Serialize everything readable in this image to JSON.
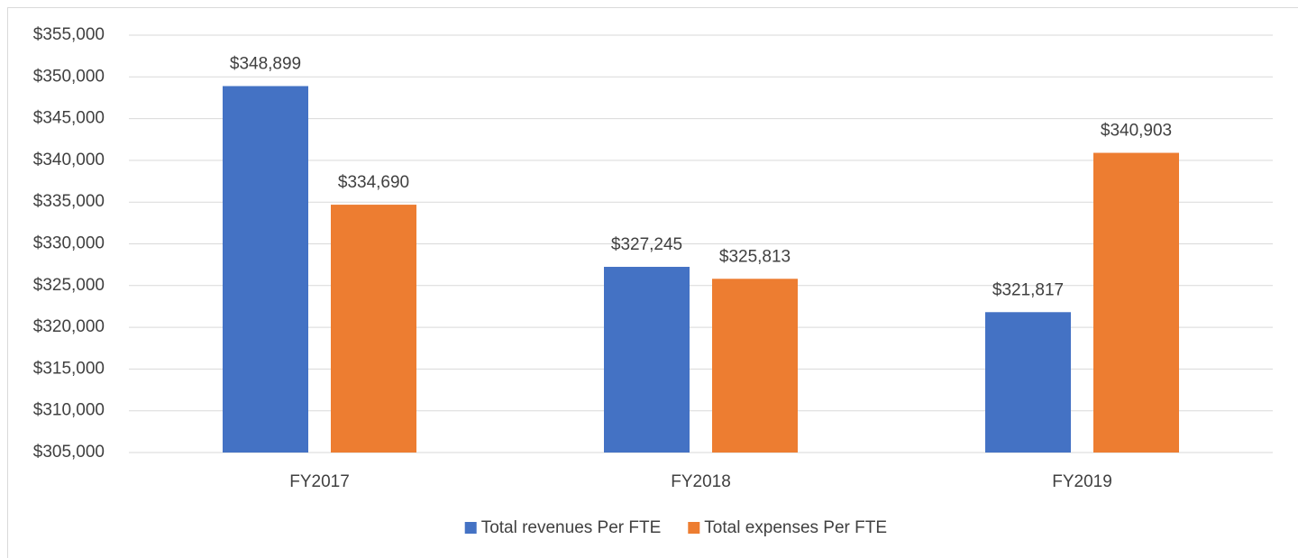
{
  "chart_data": {
    "type": "bar",
    "categories": [
      "FY2017",
      "FY2018",
      "FY2019"
    ],
    "series": [
      {
        "name": "Total revenues Per FTE",
        "color": "#4472c4",
        "values": [
          348899,
          327245,
          321817
        ],
        "value_labels": [
          "$348,899",
          "$327,245",
          "$321,817"
        ]
      },
      {
        "name": "Total expenses Per FTE",
        "color": "#ed7d31",
        "values": [
          334690,
          325813,
          340903
        ],
        "value_labels": [
          "$334,690",
          "$325,813",
          "$340,903"
        ]
      }
    ],
    "ylim": [
      305000,
      355000
    ],
    "yticks": [
      {
        "value": 305000,
        "label": "$305,000"
      },
      {
        "value": 310000,
        "label": "$310,000"
      },
      {
        "value": 315000,
        "label": "$315,000"
      },
      {
        "value": 320000,
        "label": "$320,000"
      },
      {
        "value": 325000,
        "label": "$325,000"
      },
      {
        "value": 330000,
        "label": "$330,000"
      },
      {
        "value": 335000,
        "label": "$335,000"
      },
      {
        "value": 340000,
        "label": "$340,000"
      },
      {
        "value": 345000,
        "label": "$345,000"
      },
      {
        "value": 350000,
        "label": "$350,000"
      },
      {
        "value": 355000,
        "label": "$355,000"
      }
    ],
    "grid": true,
    "legend": "bottom"
  }
}
